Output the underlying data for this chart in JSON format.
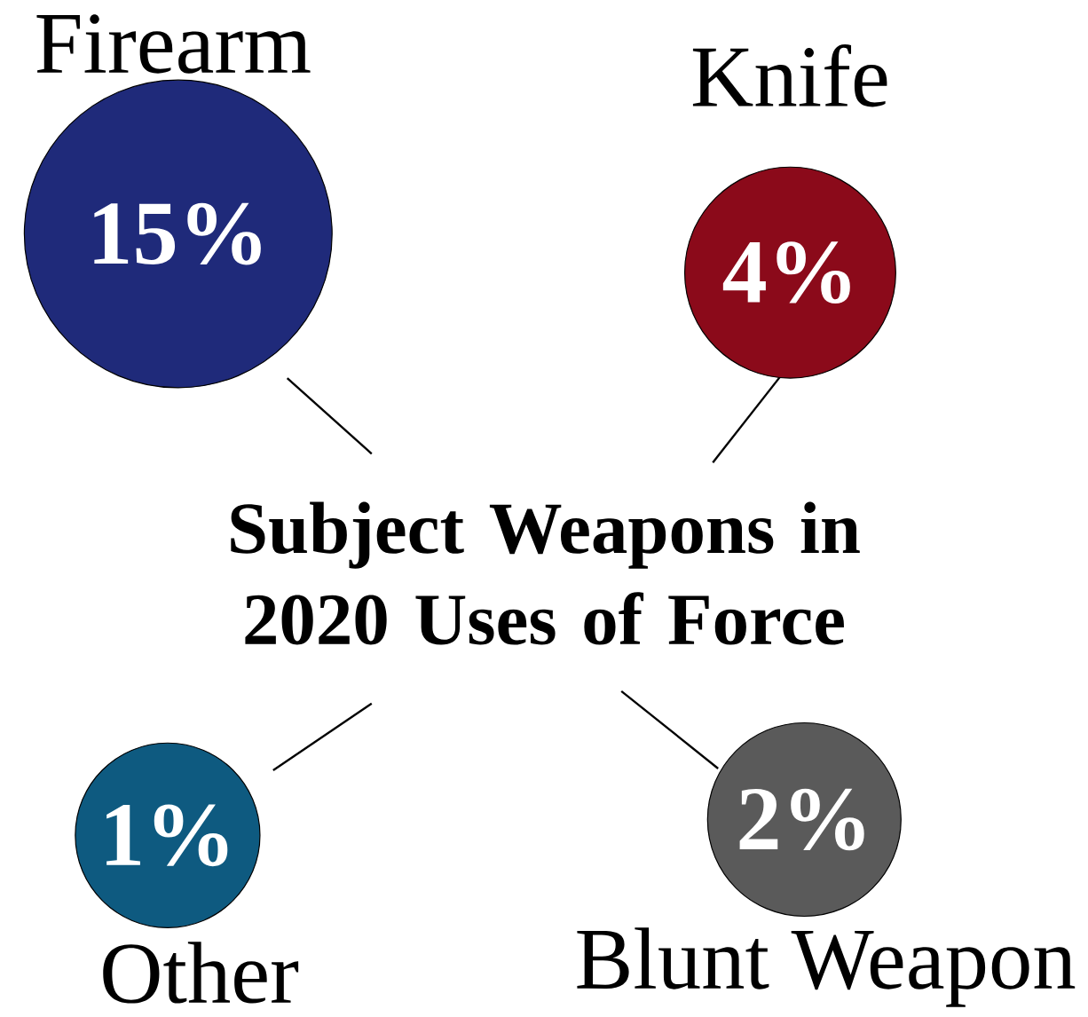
{
  "chart_data": {
    "type": "other",
    "title": "Subject Weapons in 2020 Uses of Force",
    "categories": [
      "Firearm",
      "Knife",
      "Other",
      "Blunt Weapon"
    ],
    "values": [
      15,
      4,
      1,
      2
    ],
    "colors": [
      "#1f2a7a",
      "#8b0a1a",
      "#0e5a80",
      "#5a5a5a"
    ],
    "value_labels": [
      "15%",
      "4%",
      "1%",
      "2%"
    ],
    "data_labels": true
  }
}
